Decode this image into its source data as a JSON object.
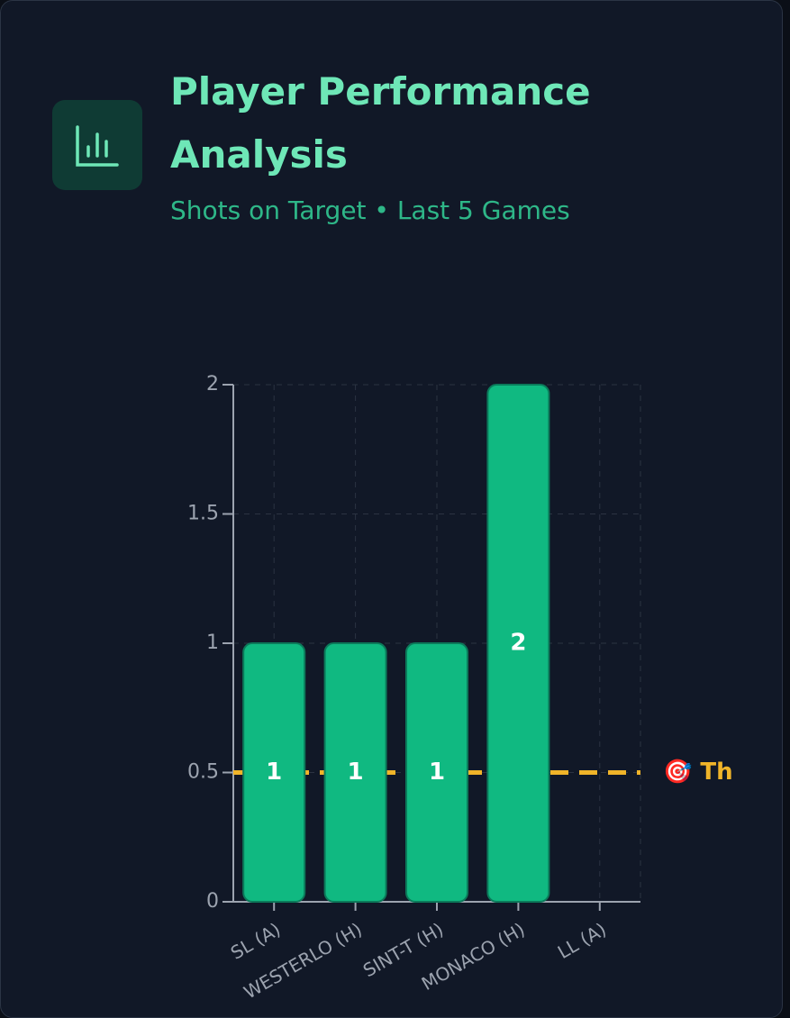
{
  "header": {
    "title": "Player Performance Analysis",
    "subtitle": "Shots on Target • Last 5 Games"
  },
  "chart_data": {
    "type": "bar",
    "categories": [
      "SL (A)",
      "WESTERLO (H)",
      "SINT-T (H)",
      "MONACO (H)",
      "LL (A)"
    ],
    "values": [
      1,
      1,
      1,
      2,
      null
    ],
    "color": "#10b981",
    "ylim": [
      0,
      2
    ],
    "yticks": [
      0,
      0.5,
      1,
      1.5,
      2
    ],
    "grid": true,
    "threshold": 0.5,
    "threshold_label": "🎯 Th",
    "threshold_color": "#f0b429"
  }
}
